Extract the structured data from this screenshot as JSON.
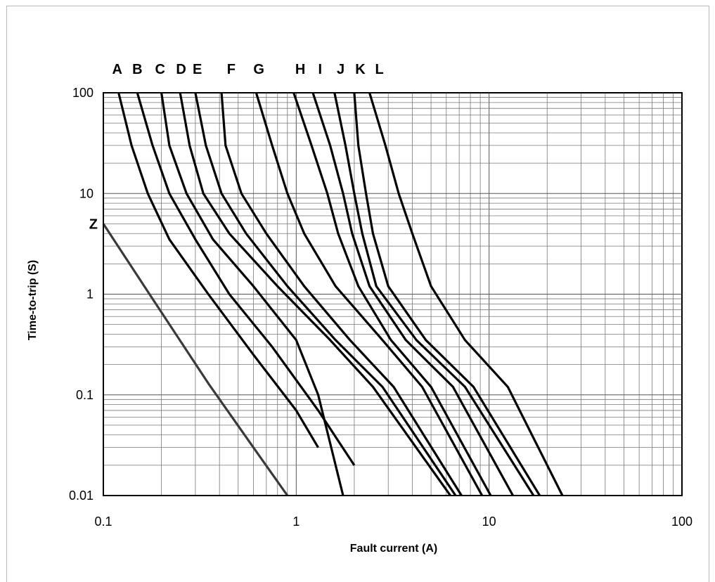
{
  "chart_data": {
    "type": "line",
    "title": "",
    "xlabel": "Fault current (A)",
    "ylabel": "Time-to-trip (S)",
    "x_scale": "log",
    "y_scale": "log",
    "xlim": [
      0.1,
      100
    ],
    "ylim": [
      0.01,
      100
    ],
    "grid": true,
    "x_tick_labels": [
      {
        "value": 0.1,
        "label": "0.1"
      },
      {
        "value": 1,
        "label": "1"
      },
      {
        "value": 10,
        "label": "10"
      },
      {
        "value": 100,
        "label": "100"
      }
    ],
    "y_tick_labels": [
      {
        "value": 100,
        "label": "100"
      },
      {
        "value": 10,
        "label": "10"
      },
      {
        "value": 1,
        "label": "1"
      },
      {
        "value": 0.1,
        "label": "0.1"
      },
      {
        "value": 0.01,
        "label": "0.01"
      }
    ],
    "series": [
      {
        "name": "A",
        "color": "#000000",
        "label_x": 0.118,
        "points": [
          [
            0.12,
            100
          ],
          [
            0.14,
            30
          ],
          [
            0.17,
            10
          ],
          [
            0.22,
            3.5
          ],
          [
            0.35,
            1
          ],
          [
            0.6,
            0.25
          ],
          [
            1.0,
            0.07
          ],
          [
            1.3,
            0.03
          ]
        ]
      },
      {
        "name": "B",
        "color": "#000000",
        "label_x": 0.15,
        "points": [
          [
            0.15,
            100
          ],
          [
            0.18,
            30
          ],
          [
            0.22,
            10
          ],
          [
            0.3,
            3.5
          ],
          [
            0.45,
            1
          ],
          [
            0.75,
            0.3
          ],
          [
            1.3,
            0.07
          ],
          [
            2.0,
            0.02
          ]
        ]
      },
      {
        "name": "C",
        "color": "#000000",
        "label_x": 0.197,
        "points": [
          [
            0.2,
            100
          ],
          [
            0.22,
            30
          ],
          [
            0.27,
            10
          ],
          [
            0.37,
            3.5
          ],
          [
            0.6,
            1.2
          ],
          [
            1.0,
            0.35
          ],
          [
            1.3,
            0.1
          ],
          [
            1.75,
            0.01
          ]
        ]
      },
      {
        "name": "D",
        "color": "#000000",
        "label_x": 0.253,
        "points": [
          [
            0.25,
            100
          ],
          [
            0.28,
            30
          ],
          [
            0.33,
            10
          ],
          [
            0.45,
            4
          ],
          [
            0.8,
            1.2
          ],
          [
            1.5,
            0.35
          ],
          [
            2.5,
            0.12
          ],
          [
            6.3,
            0.01
          ]
        ]
      },
      {
        "name": "E",
        "color": "#000000",
        "label_x": 0.307,
        "points": [
          [
            0.3,
            100
          ],
          [
            0.34,
            30
          ],
          [
            0.41,
            10
          ],
          [
            0.55,
            4
          ],
          [
            0.9,
            1.2
          ],
          [
            1.6,
            0.35
          ],
          [
            2.8,
            0.12
          ],
          [
            6.7,
            0.01
          ]
        ]
      },
      {
        "name": "F",
        "color": "#000000",
        "label_x": 0.46,
        "points": [
          [
            0.41,
            100
          ],
          [
            0.43,
            30
          ],
          [
            0.52,
            10
          ],
          [
            0.7,
            4
          ],
          [
            1.1,
            1.2
          ],
          [
            1.9,
            0.35
          ],
          [
            3.2,
            0.12
          ],
          [
            7.2,
            0.01
          ]
        ]
      },
      {
        "name": "G",
        "color": "#000000",
        "label_x": 0.64,
        "points": [
          [
            0.62,
            100
          ],
          [
            0.75,
            30
          ],
          [
            0.9,
            10
          ],
          [
            1.1,
            4
          ],
          [
            1.6,
            1.2
          ],
          [
            2.8,
            0.35
          ],
          [
            4.5,
            0.12
          ],
          [
            9.2,
            0.01
          ]
        ]
      },
      {
        "name": "H",
        "color": "#000000",
        "label_x": 1.05,
        "points": [
          [
            0.97,
            100
          ],
          [
            1.2,
            30
          ],
          [
            1.45,
            10
          ],
          [
            1.65,
            4
          ],
          [
            2.1,
            1.2
          ],
          [
            3.1,
            0.35
          ],
          [
            5.0,
            0.12
          ],
          [
            10.2,
            0.01
          ]
        ]
      },
      {
        "name": "I",
        "color": "#000000",
        "label_x": 1.33,
        "points": [
          [
            1.22,
            100
          ],
          [
            1.5,
            30
          ],
          [
            1.75,
            10
          ],
          [
            1.95,
            4
          ],
          [
            2.4,
            1.2
          ],
          [
            3.7,
            0.35
          ],
          [
            6.5,
            0.12
          ],
          [
            13.3,
            0.01
          ]
        ]
      },
      {
        "name": "J",
        "color": "#000000",
        "label_x": 1.7,
        "points": [
          [
            1.58,
            100
          ],
          [
            1.8,
            30
          ],
          [
            2.0,
            10
          ],
          [
            2.2,
            4
          ],
          [
            2.6,
            1.2
          ],
          [
            4.2,
            0.35
          ],
          [
            7.5,
            0.12
          ],
          [
            17.0,
            0.01
          ]
        ]
      },
      {
        "name": "K",
        "color": "#000000",
        "label_x": 2.15,
        "points": [
          [
            2.0,
            100
          ],
          [
            2.1,
            30
          ],
          [
            2.3,
            10
          ],
          [
            2.5,
            4
          ],
          [
            3.0,
            1.2
          ],
          [
            4.7,
            0.35
          ],
          [
            8.3,
            0.12
          ],
          [
            18.3,
            0.01
          ]
        ]
      },
      {
        "name": "L",
        "color": "#000000",
        "label_x": 2.7,
        "points": [
          [
            2.4,
            100
          ],
          [
            2.9,
            30
          ],
          [
            3.4,
            10
          ],
          [
            4.0,
            4
          ],
          [
            5.0,
            1.2
          ],
          [
            7.5,
            0.35
          ],
          [
            12.5,
            0.12
          ],
          [
            24.0,
            0.01
          ]
        ]
      },
      {
        "name": "Z",
        "color": "#3a3a3a",
        "label_y": 5,
        "points": [
          [
            0.1,
            5
          ],
          [
            0.18,
            0.9
          ],
          [
            0.35,
            0.13
          ],
          [
            0.6,
            0.03
          ],
          [
            0.9,
            0.01
          ]
        ]
      }
    ]
  }
}
